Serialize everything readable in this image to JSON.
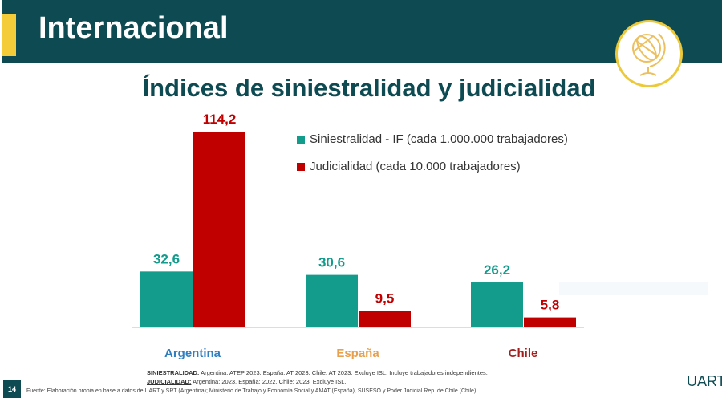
{
  "header": {
    "title": "Internacional"
  },
  "slide": {
    "subtitle": "Índices de siniestralidad y judicialidad",
    "page_number": "14",
    "logo": "UART",
    "icon": "globe-icon"
  },
  "chart_data": {
    "type": "bar",
    "title": "Índices de siniestralidad y judicialidad",
    "categories": [
      "Argentina",
      "España",
      "Chile"
    ],
    "category_colors": [
      "#2f7fc1",
      "#e8a04c",
      "#a31f1f"
    ],
    "series": [
      {
        "name": "Siniestralidad - IF (cada 1.000.000 trabajadores)",
        "color": "#139b8c",
        "values": [
          32.6,
          30.6,
          26.2
        ],
        "labels": [
          "32,6",
          "30,6",
          "26,2"
        ]
      },
      {
        "name": "Judicialidad (cada 10.000 trabajadores)",
        "color": "#c00000",
        "values": [
          114.2,
          9.5,
          5.8
        ],
        "labels": [
          "114,2",
          "9,5",
          "5,8"
        ]
      }
    ],
    "ylim": [
      0,
      114.2
    ],
    "legend_position": "top-right",
    "grid": false
  },
  "notes": {
    "siniestralidad_label": "SINIESTRALIDAD:",
    "siniestralidad_text": " Argentina: ATEP 2023. España: AT 2023. Chile: AT 2023. Excluye ISL. Incluye trabajadores independientes.",
    "judicialidad_label": "JUDICIALIDAD:",
    "judicialidad_text": " Argentina: 2023. España: 2022. Chile: 2023. Excluye ISL.",
    "source": "Fuente: Elaboración propia en base a datos de UART y SRT (Argentina); Ministerio de Trabajo y Economía Social y AMAT (España), SUSESO y Poder Judicial Rep. de Chile (Chile)"
  }
}
